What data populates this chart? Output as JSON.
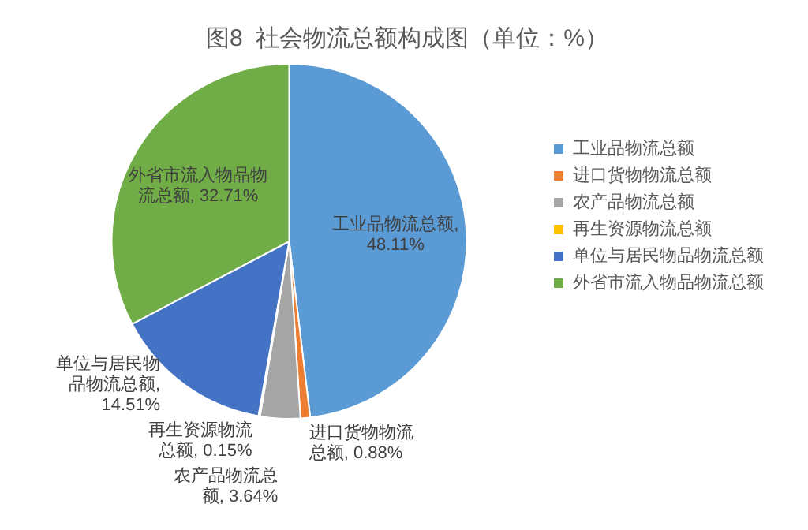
{
  "chart_data": {
    "type": "pie",
    "title": "图8  社会物流总额构成图（单位：%）",
    "categories": [
      "工业品物流总额",
      "进口货物物流总额",
      "农产品物流总额",
      "再生资源物流总额",
      "单位与居民物品物流总额",
      "外省市流入物品物流总额"
    ],
    "values": [
      48.11,
      0.88,
      3.64,
      0.15,
      14.51,
      32.71
    ],
    "colors": [
      "#5b9bd5",
      "#ed7d31",
      "#a5a5a5",
      "#ffc000",
      "#4472c4",
      "#70ad47"
    ],
    "value_labels": [
      "工业品物流总额, 48.11%",
      "进口货物物流总额, 0.88%",
      "农产品物流总额, 3.64%",
      "再生资源物流总额, 0.15%",
      "单位与居民物品物流总额, 14.51%",
      "外省市流入物品物流总额, 32.71%"
    ],
    "legend": "right"
  }
}
